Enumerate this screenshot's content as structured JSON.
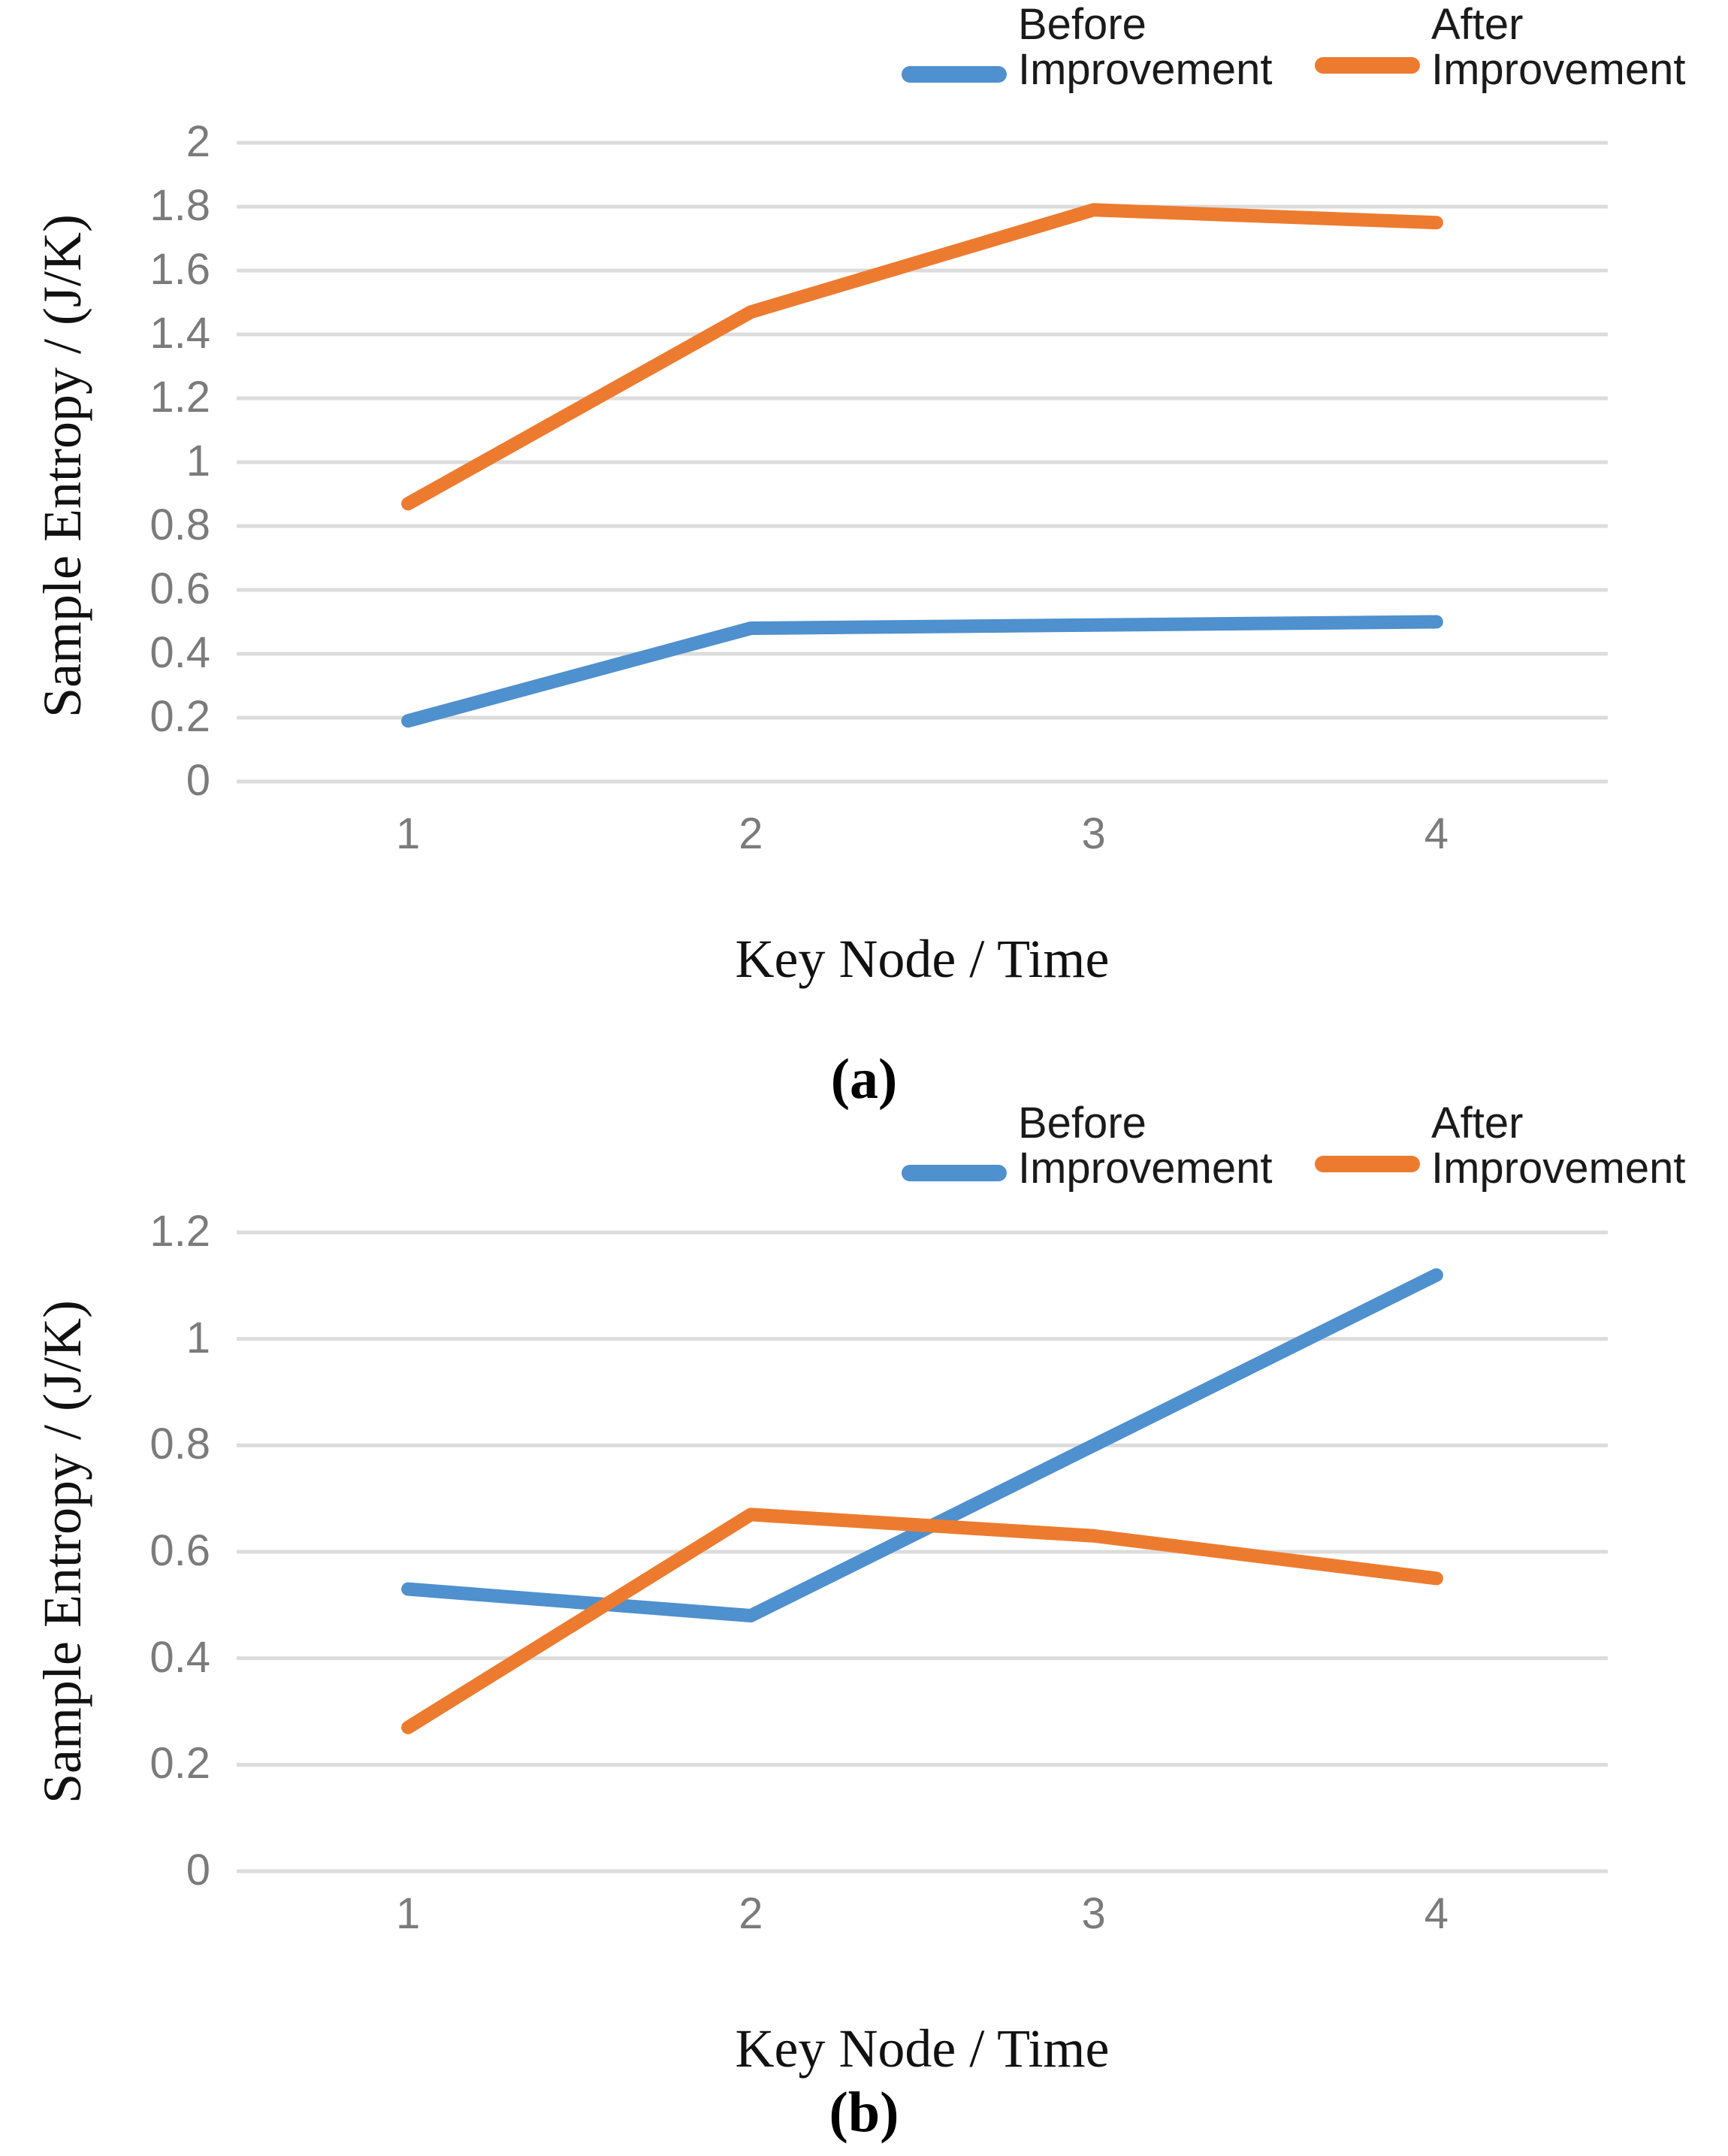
{
  "colors": {
    "before_series": "#4f90ce",
    "after_series": "#ed7b2f",
    "gridline": "#dcdcdc",
    "tick_text": "#7b7b7b",
    "axis_title_text": "#111111"
  },
  "panels": [
    {
      "caption": "(a)",
      "xlabel": "Key Node / Time",
      "ylabel": "Sample Entropy / (J/K)",
      "legend": [
        {
          "name": "Before Improvement",
          "line1": "Before",
          "line2": "Improvement",
          "color": "#4f90ce"
        },
        {
          "name": "After Improvement",
          "line1": "After",
          "line2": "Improvement",
          "color": "#ed7b2f"
        }
      ]
    },
    {
      "caption": "(b)",
      "xlabel": "Key Node / Time",
      "ylabel": "Sample Entropy / (J/K)",
      "legend": [
        {
          "name": "Before Improvement",
          "line1": "Before",
          "line2": "Improvement",
          "color": "#4f90ce"
        },
        {
          "name": "After Improvement",
          "line1": "After",
          "line2": "Improvement",
          "color": "#ed7b2f"
        }
      ]
    }
  ],
  "chart_data": [
    {
      "type": "line",
      "panel": "a",
      "title": "",
      "xlabel": "Key Node / Time",
      "ylabel": "Sample Entropy / (J/K)",
      "categories": [
        1,
        2,
        3,
        4
      ],
      "xtick_labels": [
        "1",
        "2",
        "3",
        "4"
      ],
      "series": [
        {
          "name": "Before Improvement",
          "color": "#4f90ce",
          "values": [
            0.19,
            0.48,
            0.49,
            0.5
          ]
        },
        {
          "name": "After Improvement",
          "color": "#ed7b2f",
          "values": [
            0.87,
            1.47,
            1.79,
            1.75
          ]
        }
      ],
      "ylim": [
        0,
        2
      ],
      "ytick_step": 0.2,
      "ytick_labels": [
        "2",
        "1.8",
        "1.6",
        "1.4",
        "1.2",
        "1",
        "0.8",
        "0.6",
        "0.4",
        "0.2",
        "0"
      ],
      "grid": "horizontal",
      "legend_position": "top"
    },
    {
      "type": "line",
      "panel": "b",
      "title": "",
      "xlabel": "Key Node / Time",
      "ylabel": "Sample Entropy / (J/K)",
      "categories": [
        1,
        2,
        3,
        4
      ],
      "xtick_labels": [
        "1",
        "2",
        "3",
        "4"
      ],
      "series": [
        {
          "name": "Before Improvement",
          "color": "#4f90ce",
          "values": [
            0.53,
            0.48,
            0.8,
            1.12
          ]
        },
        {
          "name": "After Improvement",
          "color": "#ed7b2f",
          "values": [
            0.27,
            0.67,
            0.63,
            0.55
          ]
        }
      ],
      "ylim": [
        0,
        1.2
      ],
      "ytick_step": 0.2,
      "ytick_labels": [
        "1.2",
        "1",
        "0.8",
        "0.6",
        "0.4",
        "0.2",
        "0"
      ],
      "grid": "horizontal",
      "legend_position": "top"
    }
  ]
}
